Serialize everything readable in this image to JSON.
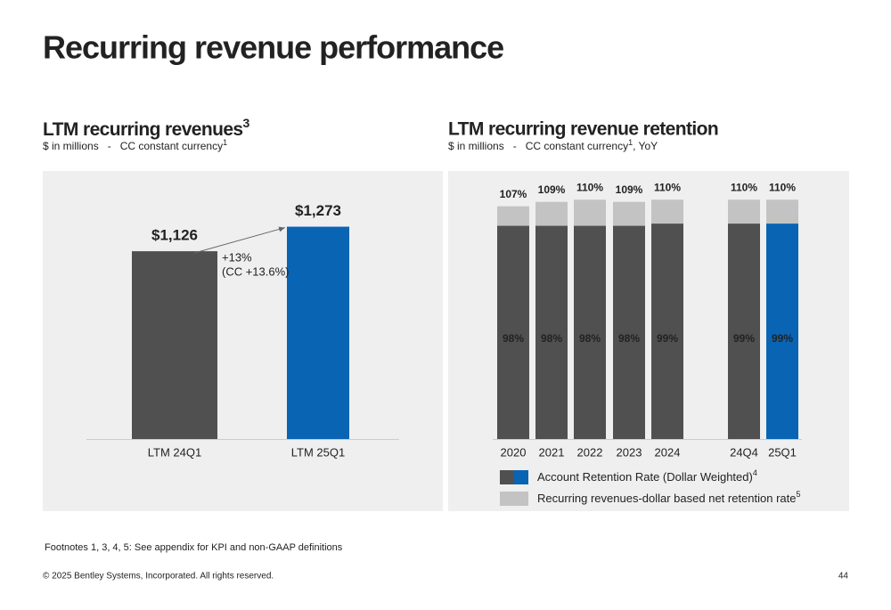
{
  "title": "Recurring revenue performance",
  "footnote": "Footnotes 1, 3, 4, 5: See appendix for KPI and non-GAAP definitions",
  "copyright": "© 2025 Bentley Systems, Incorporated. All rights reserved.",
  "page_number": "44",
  "chart_data": [
    {
      "type": "bar",
      "title": "LTM recurring revenues",
      "title_note": "3",
      "subtitle": "$ in millions   -   CC constant currency",
      "subtitle_note": "1",
      "categories": [
        "LTM 24Q1",
        "LTM 25Q1"
      ],
      "values": [
        1126,
        1273
      ],
      "value_labels": [
        "$1,126",
        "$1,273"
      ],
      "colors": [
        "#505050",
        "#0a64b4"
      ],
      "annotations": [
        "+13%",
        "(CC +13.6%)"
      ]
    },
    {
      "type": "bar",
      "overlap": true,
      "title": "LTM recurring revenue retention",
      "subtitle": "$ in millions   -   CC constant currency",
      "subtitle_note": "1",
      "subtitle_suffix": ", YoY",
      "categories": [
        "2020",
        "2021",
        "2022",
        "2023",
        "2024",
        "24Q4",
        "25Q1"
      ],
      "series": [
        {
          "name": "Account Retention Rate (Dollar Weighted)",
          "note": "4",
          "color": "#505050",
          "colors": [
            "#505050",
            "#505050",
            "#505050",
            "#505050",
            "#505050",
            "#505050",
            "#0a64b4"
          ],
          "values": [
            98,
            98,
            98,
            98,
            99,
            99,
            99
          ],
          "value_labels": [
            "98%",
            "98%",
            "98%",
            "98%",
            "99%",
            "99%",
            "99%"
          ]
        },
        {
          "name": "Recurring revenues-dollar based net retention rate",
          "note": "5",
          "color": "#c3c3c3",
          "values": [
            107,
            109,
            110,
            109,
            110,
            110,
            110
          ],
          "value_labels": [
            "107%",
            "109%",
            "110%",
            "109%",
            "110%",
            "110%",
            "110%"
          ]
        }
      ]
    }
  ]
}
